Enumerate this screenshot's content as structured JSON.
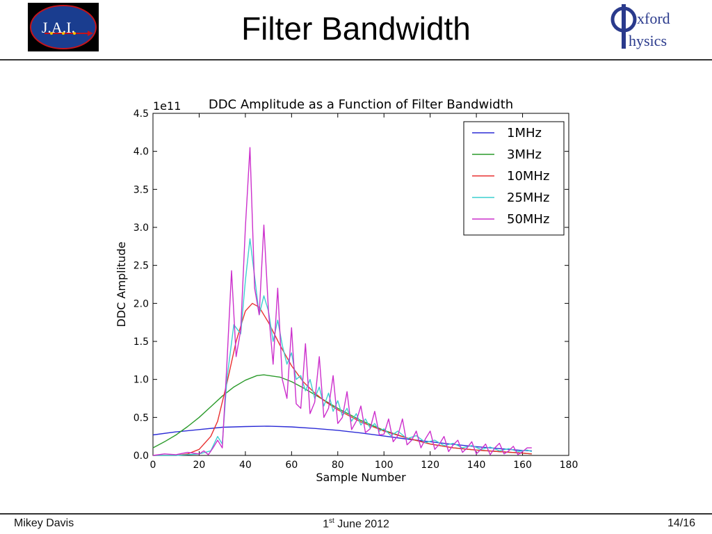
{
  "header": {
    "title": "Filter Bandwidth",
    "left_logo_text": "J.A.I.",
    "right_logo_text_1": "xford",
    "right_logo_text_2": "hysics"
  },
  "footer": {
    "author": "Mikey Davis",
    "date_prefix": "1",
    "date_sup": "st",
    "date_suffix": " June 2012",
    "page": "14/16"
  },
  "colors": {
    "1MHz": "#2b2bd6",
    "3MHz": "#2a9a2a",
    "10MHz": "#e83030",
    "25MHz": "#3ccfcf",
    "50MHz": "#cc2fcc"
  },
  "chart_data": {
    "type": "line",
    "title": "DDC Amplitude as a Function of Filter Bandwidth",
    "xlabel": "Sample Number",
    "ylabel": "DDC Amplitude",
    "y_multiplier": "1e11",
    "xlim": [
      0,
      180
    ],
    "ylim": [
      0,
      4.5
    ],
    "xticks": [
      0,
      20,
      40,
      60,
      80,
      100,
      120,
      140,
      160,
      180
    ],
    "yticks": [
      0.0,
      0.5,
      1.0,
      1.5,
      2.0,
      2.5,
      3.0,
      3.5,
      4.0,
      4.5
    ],
    "legend_position": "top-right",
    "grid": false,
    "series": [
      {
        "name": "1MHz",
        "x": [
          0,
          10,
          20,
          30,
          40,
          50,
          60,
          70,
          80,
          90,
          100,
          110,
          120,
          130,
          140,
          150,
          160,
          164
        ],
        "values": [
          0.27,
          0.31,
          0.34,
          0.37,
          0.38,
          0.385,
          0.375,
          0.355,
          0.33,
          0.295,
          0.255,
          0.215,
          0.18,
          0.145,
          0.115,
          0.09,
          0.065,
          0.06
        ]
      },
      {
        "name": "3MHz",
        "x": [
          0,
          5,
          10,
          15,
          20,
          25,
          30,
          35,
          40,
          45,
          48,
          55,
          60,
          65,
          70,
          75,
          80,
          90,
          100,
          110,
          120,
          130,
          140,
          150,
          160,
          164
        ],
        "values": [
          0.1,
          0.18,
          0.27,
          0.38,
          0.5,
          0.64,
          0.78,
          0.9,
          0.99,
          1.05,
          1.06,
          1.03,
          0.97,
          0.89,
          0.8,
          0.71,
          0.62,
          0.46,
          0.33,
          0.23,
          0.15,
          0.1,
          0.07,
          0.05,
          0.03,
          0.02
        ]
      },
      {
        "name": "10MHz",
        "x": [
          0,
          10,
          15,
          20,
          25,
          28,
          32,
          36,
          40,
          43,
          46,
          50,
          55,
          60,
          65,
          70,
          75,
          80,
          90,
          100,
          110,
          120,
          130,
          140,
          150,
          160,
          164
        ],
        "values": [
          0.0,
          0.0,
          0.02,
          0.08,
          0.25,
          0.45,
          0.95,
          1.5,
          1.9,
          2.0,
          1.95,
          1.75,
          1.45,
          1.18,
          0.97,
          0.82,
          0.7,
          0.6,
          0.44,
          0.32,
          0.23,
          0.15,
          0.1,
          0.07,
          0.05,
          0.03,
          0.02
        ]
      },
      {
        "name": "25MHz",
        "x": [
          0,
          10,
          20,
          25,
          28,
          30,
          32,
          35,
          38,
          40,
          42,
          44,
          46,
          48,
          50,
          52,
          54,
          56,
          58,
          60,
          62,
          64,
          66,
          68,
          70,
          72,
          74,
          76,
          78,
          80,
          82,
          84,
          86,
          88,
          90,
          92,
          94,
          96,
          98,
          100,
          103,
          106,
          110,
          114,
          118,
          122,
          126,
          130,
          134,
          138,
          142,
          146,
          150,
          154,
          158,
          162,
          164
        ],
        "values": [
          0.0,
          0.0,
          0.02,
          0.06,
          0.25,
          0.15,
          1.0,
          1.72,
          1.6,
          2.3,
          2.85,
          2.35,
          1.85,
          2.1,
          1.9,
          1.5,
          1.78,
          1.45,
          1.2,
          1.35,
          1.0,
          1.05,
          0.85,
          1.0,
          0.75,
          0.9,
          0.65,
          0.82,
          0.58,
          0.72,
          0.52,
          0.62,
          0.45,
          0.55,
          0.4,
          0.48,
          0.36,
          0.42,
          0.32,
          0.35,
          0.26,
          0.32,
          0.22,
          0.26,
          0.17,
          0.2,
          0.13,
          0.16,
          0.1,
          0.13,
          0.08,
          0.11,
          0.06,
          0.09,
          0.05,
          0.07,
          0.05
        ]
      },
      {
        "name": "50MHz",
        "x": [
          0,
          5,
          10,
          15,
          20,
          22,
          24,
          26,
          28,
          30,
          32,
          34,
          36,
          38,
          40,
          42,
          44,
          46,
          48,
          50,
          52,
          54,
          56,
          58,
          60,
          62,
          64,
          66,
          68,
          70,
          72,
          74,
          76,
          78,
          80,
          82,
          84,
          86,
          88,
          90,
          92,
          94,
          96,
          98,
          100,
          102,
          104,
          106,
          108,
          110,
          112,
          114,
          116,
          118,
          120,
          122,
          124,
          126,
          128,
          130,
          132,
          134,
          136,
          138,
          140,
          142,
          144,
          146,
          148,
          150,
          152,
          154,
          156,
          158,
          160,
          162,
          164
        ],
        "values": [
          0.0,
          0.02,
          0.01,
          0.04,
          0.02,
          0.06,
          0.01,
          0.1,
          0.2,
          0.1,
          1.2,
          2.43,
          1.3,
          1.65,
          3.0,
          4.05,
          2.2,
          1.85,
          3.03,
          1.9,
          1.2,
          2.2,
          1.0,
          0.75,
          1.68,
          0.68,
          0.62,
          1.47,
          0.55,
          0.7,
          1.3,
          0.5,
          0.62,
          1.05,
          0.42,
          0.5,
          0.84,
          0.34,
          0.45,
          0.65,
          0.3,
          0.35,
          0.58,
          0.27,
          0.28,
          0.48,
          0.18,
          0.26,
          0.48,
          0.14,
          0.2,
          0.32,
          0.1,
          0.22,
          0.32,
          0.08,
          0.15,
          0.25,
          0.05,
          0.14,
          0.2,
          0.04,
          0.1,
          0.18,
          0.02,
          0.08,
          0.15,
          0.01,
          0.1,
          0.16,
          0.02,
          0.06,
          0.12,
          0.01,
          0.05,
          0.1,
          0.1
        ]
      }
    ]
  }
}
